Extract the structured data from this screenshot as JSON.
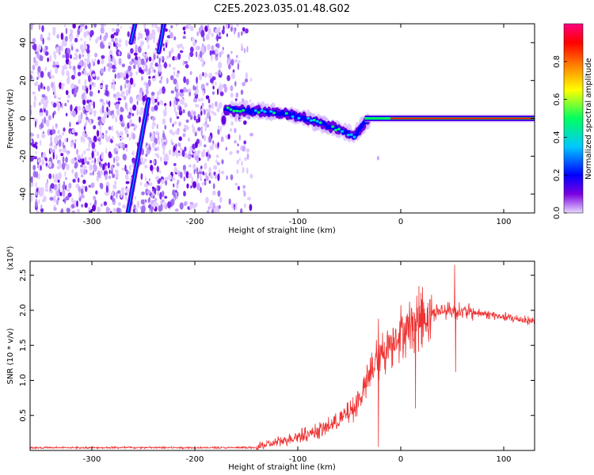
{
  "title": "C2E5.2023.035.01.48.G02",
  "chart_data": [
    {
      "type": "heatmap",
      "xlabel": "Height of straight line (km)",
      "ylabel": "Frequency (Hz)",
      "xlim": [
        -360,
        130
      ],
      "ylim": [
        -50,
        50
      ],
      "x_ticks": [
        -300,
        -200,
        -100,
        0,
        100
      ],
      "y_ticks": [
        -40,
        -20,
        0,
        20,
        40
      ],
      "colorbar": {
        "label": "Normalized spectral amplitude",
        "range": [
          0.0,
          1.0
        ],
        "ticks": [
          0.0,
          0.2,
          0.4,
          0.6,
          0.8
        ],
        "colors": [
          "#e8d8ff",
          "#7a00e0",
          "#0000ff",
          "#00c8ff",
          "#00ff60",
          "#ffff00",
          "#ff8000",
          "#ff0000",
          "#ff0080"
        ]
      },
      "features": {
        "noise_region_x": [
          -360,
          -145
        ],
        "carrier_track": [
          [
            -170,
            5
          ],
          [
            -150,
            4
          ],
          [
            -120,
            3
          ],
          [
            -100,
            1
          ],
          [
            -80,
            -2
          ],
          [
            -60,
            -6
          ],
          [
            -45,
            -10
          ],
          [
            -35,
            -2
          ],
          [
            -20,
            0
          ],
          [
            0,
            0
          ],
          [
            130,
            0
          ]
        ],
        "streak_1": [
          [
            -265,
            -50
          ],
          [
            -250,
            -5
          ],
          [
            -245,
            10
          ]
        ],
        "streak_2": [
          [
            -262,
            40
          ],
          [
            -258,
            50
          ]
        ],
        "streak_3": [
          [
            -235,
            35
          ],
          [
            -230,
            50
          ]
        ]
      }
    },
    {
      "type": "line",
      "xlabel": "Height of straight line (km)",
      "ylabel": "SNR (10 * v/v)",
      "exponent_label": "(x10⁴)",
      "xlim": [
        -360,
        130
      ],
      "ylim": [
        0,
        2.7
      ],
      "x_ticks": [
        -300,
        -200,
        -100,
        0,
        100
      ],
      "y_ticks": [
        0.5,
        1.0,
        1.5,
        2.0,
        2.5
      ],
      "color": "#ee3333",
      "envelope": [
        [
          -360,
          0.04
        ],
        [
          -140,
          0.04
        ],
        [
          -120,
          0.12
        ],
        [
          -100,
          0.2
        ],
        [
          -80,
          0.28
        ],
        [
          -60,
          0.42
        ],
        [
          -45,
          0.6
        ],
        [
          -35,
          0.9
        ],
        [
          -25,
          1.25
        ],
        [
          -15,
          1.45
        ],
        [
          -5,
          1.62
        ],
        [
          5,
          1.75
        ],
        [
          20,
          1.9
        ],
        [
          35,
          1.98
        ],
        [
          50,
          2.0
        ],
        [
          70,
          1.97
        ],
        [
          90,
          1.93
        ],
        [
          110,
          1.88
        ],
        [
          130,
          1.84
        ]
      ],
      "spikes": [
        [
          -22,
          1.88
        ],
        [
          -22,
          0.05
        ],
        [
          14,
          0.6
        ],
        [
          52,
          2.65
        ],
        [
          53,
          1.12
        ]
      ]
    }
  ]
}
